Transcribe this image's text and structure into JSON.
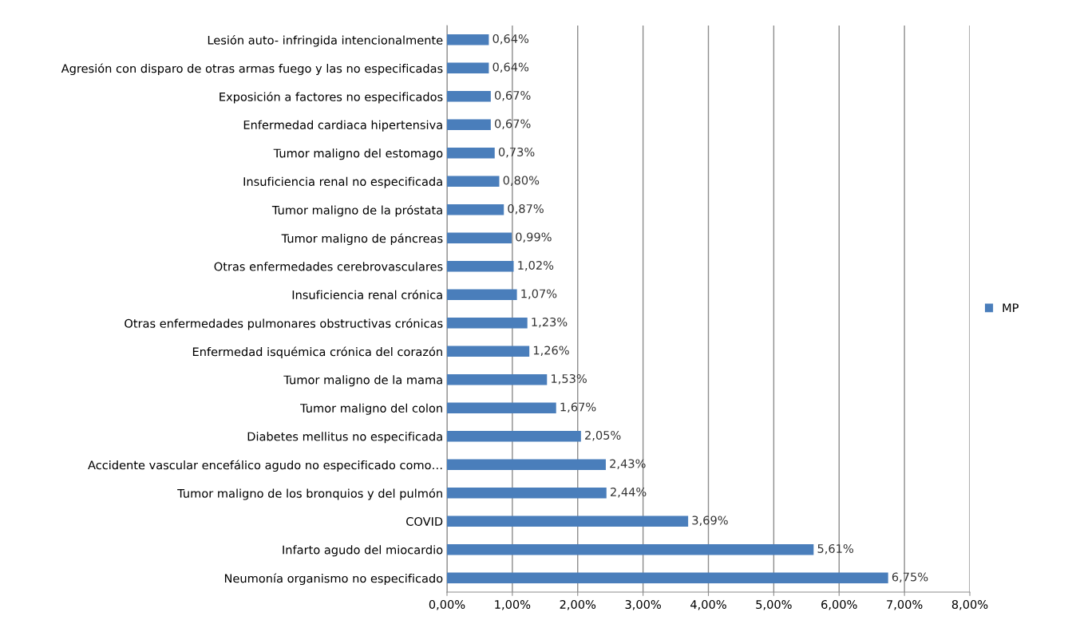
{
  "chart_data": {
    "type": "bar",
    "orientation": "horizontal",
    "categories": [
      "Lesión auto- infringida intencionalmente",
      "Agresión con disparo de otras armas fuego y las no especificadas",
      "Exposición a factores no especificados",
      "Enfermedad cardiaca hipertensiva",
      "Tumor maligno del estomago",
      "Insuficiencia renal no especificada",
      "Tumor maligno de la próstata",
      "Tumor maligno de páncreas",
      "Otras enfermedades cerebrovasculares",
      "Insuficiencia renal crónica",
      "Otras enfermedades pulmonares obstructivas crónicas",
      "Enfermedad isquémica crónica del corazón",
      "Tumor maligno de la mama",
      "Tumor maligno del colon",
      "Diabetes mellitus no especificada",
      "Accidente vascular encefálico agudo no especificado como…",
      "Tumor maligno de los bronquios y del pulmón",
      "COVID",
      "Infarto agudo del miocardio",
      "Neumonía organismo no especificado"
    ],
    "series": [
      {
        "name": "MP",
        "color": "#4a7ebb",
        "values": [
          0.64,
          0.64,
          0.67,
          0.67,
          0.73,
          0.8,
          0.87,
          0.99,
          1.02,
          1.07,
          1.23,
          1.26,
          1.53,
          1.67,
          2.05,
          2.43,
          2.44,
          3.69,
          5.61,
          6.75
        ],
        "value_labels": [
          "0,64%",
          "0,64%",
          "0,67%",
          "0,67%",
          "0,73%",
          "0,80%",
          "0,87%",
          "0,99%",
          "1,02%",
          "1,07%",
          "1,23%",
          "1,26%",
          "1,53%",
          "1,67%",
          "2,05%",
          "2,43%",
          "2,44%",
          "3,69%",
          "5,61%",
          "6,75%"
        ]
      }
    ],
    "xlim": [
      0,
      8
    ],
    "xticks": [
      {
        "value": 0,
        "label": "0,00%"
      },
      {
        "value": 1,
        "label": "1,00%"
      },
      {
        "value": 2,
        "label": "2,00%"
      },
      {
        "value": 3,
        "label": "3,00%"
      },
      {
        "value": 4,
        "label": "4,00%"
      },
      {
        "value": 5,
        "label": "5,00%"
      },
      {
        "value": 6,
        "label": "6,00%"
      },
      {
        "value": 7,
        "label": "7,00%"
      },
      {
        "value": 8,
        "label": "8,00%"
      }
    ],
    "grid": "x",
    "legend": "right"
  }
}
